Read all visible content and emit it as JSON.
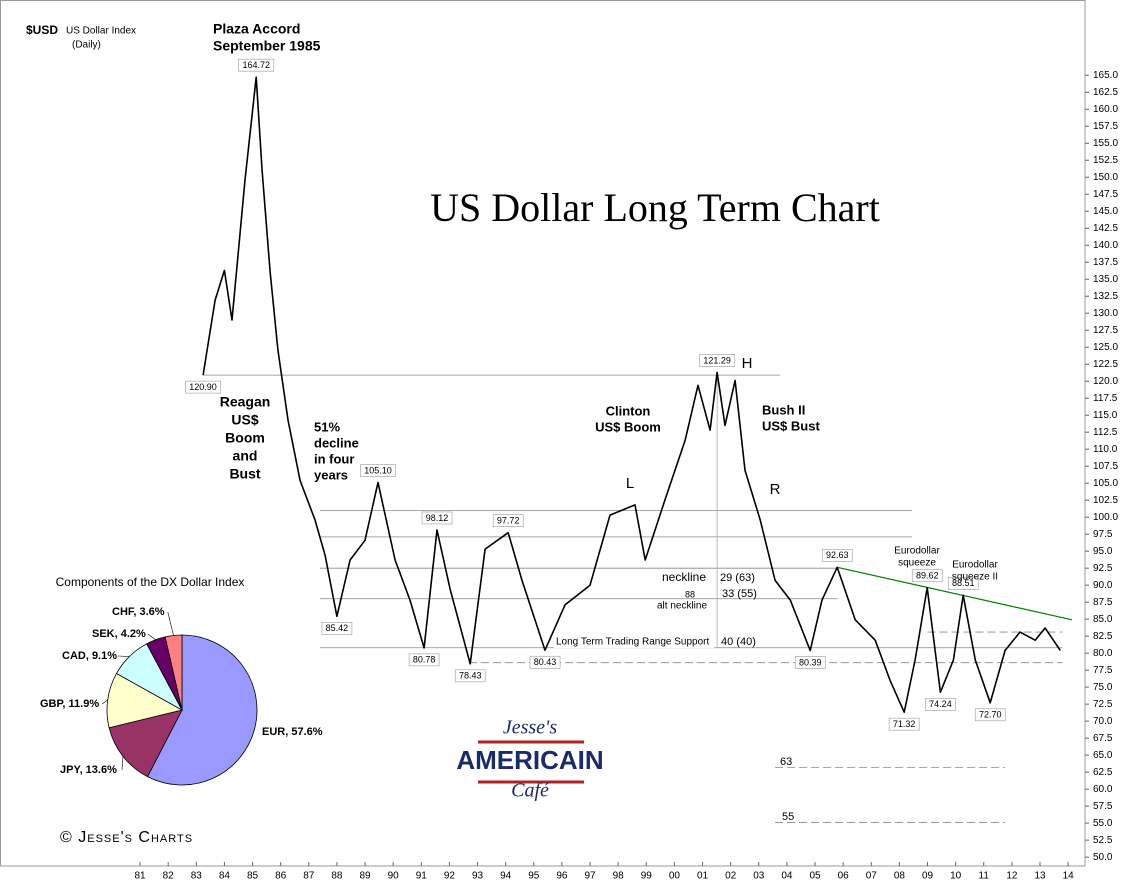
{
  "chart_data": [
    {
      "type": "line",
      "title": "US Dollar Long Term Chart",
      "symbol": "$USD",
      "name": "US Dollar Index",
      "frequency": "(Daily)",
      "x": [
        1983.24,
        1983.67,
        1984.0,
        1984.27,
        1984.73,
        1985.13,
        1985.34,
        1985.62,
        1985.9,
        1986.26,
        1986.69,
        1987.22,
        1987.58,
        1988.0,
        1988.47,
        1989.0,
        1989.46,
        1990.07,
        1990.6,
        1991.1,
        1991.56,
        1992.03,
        1992.74,
        1993.27,
        1994.09,
        1994.58,
        1995.4,
        1996.11,
        1997.0,
        1997.71,
        1998.6,
        1998.96,
        1999.67,
        2000.38,
        2000.84,
        2001.27,
        2001.52,
        2001.8,
        2002.16,
        2002.51,
        2003.05,
        2003.58,
        2004.12,
        2004.83,
        2005.25,
        2005.79,
        2006.43,
        2007.14,
        2007.67,
        2008.17,
        2008.56,
        2008.99,
        2009.46,
        2009.92,
        2010.27,
        2010.7,
        2011.23,
        2011.76,
        2012.29,
        2012.83,
        2013.18,
        2013.72
      ],
      "values": [
        120.9,
        131.9,
        136.3,
        129,
        149.6,
        164.72,
        151,
        136.3,
        124.6,
        114.3,
        105.4,
        99.6,
        94.4,
        85.42,
        93.7,
        96.6,
        105.1,
        93.7,
        87.8,
        80.78,
        98.12,
        89.3,
        78.43,
        95.3,
        97.72,
        90.7,
        80.43,
        87.1,
        90.0,
        100.3,
        101.8,
        93.7,
        102.6,
        111.3,
        119.4,
        112.8,
        121.29,
        113.5,
        120.1,
        106.9,
        99.6,
        90.7,
        87.8,
        80.39,
        87.8,
        92.63,
        84.9,
        81.9,
        76.0,
        71.32,
        79.0,
        89.62,
        74.24,
        79.0,
        88.51,
        79.0,
        72.7,
        80.4,
        83.1,
        81.9,
        83.7,
        80.4
      ],
      "color": "#000000",
      "point_labels": [
        {
          "index": 0,
          "label": "120.90"
        },
        {
          "index": 5,
          "label": "164.72"
        },
        {
          "index": 13,
          "label": "85.42"
        },
        {
          "index": 16,
          "label": "105.10"
        },
        {
          "index": 19,
          "label": "80.78"
        },
        {
          "index": 20,
          "label": "98.12"
        },
        {
          "index": 22,
          "label": "78.43"
        },
        {
          "index": 24,
          "label": "97.72"
        },
        {
          "index": 26,
          "label": "80.43"
        },
        {
          "index": 36,
          "label": "121.29"
        },
        {
          "index": 43,
          "label": "80.39"
        },
        {
          "index": 45,
          "label": "92.63"
        },
        {
          "index": 49,
          "label": "71.32"
        },
        {
          "index": 51,
          "label": "89.62"
        },
        {
          "index": 52,
          "label": "74.24"
        },
        {
          "index": 54,
          "label": "88.51"
        },
        {
          "index": 56,
          "label": "72.70"
        }
      ],
      "reference_lines": [
        {
          "value": 120.9,
          "from": 1983.24,
          "to": 2003.75
        },
        {
          "value": 101,
          "from": 1987.4,
          "to": 2008.45
        },
        {
          "value": 97.1,
          "from": 1987.4,
          "to": 2008.45
        },
        {
          "value": 92.5,
          "from": 1987.4,
          "to": 2005.8
        },
        {
          "value": 88,
          "from": 1987.4,
          "to": 2005.8
        },
        {
          "value": 80.8,
          "from": 1987.4,
          "to": 2013.8
        },
        {
          "value": 78.6,
          "from": 1992.7,
          "to": 2013.8,
          "style": "dashed"
        },
        {
          "value": 83.1,
          "from": 2009.0,
          "to": 2013.8,
          "style": "dashed"
        },
        {
          "value": 63.2,
          "from": 2003.58,
          "to": 2011.76,
          "style": "dashed"
        },
        {
          "value": 55.1,
          "from": 2003.58,
          "to": 2011.76,
          "style": "dashed"
        }
      ],
      "trend_line": {
        "from": [
          2005.79,
          92.63
        ],
        "to": [
          2014.14,
          84.9
        ],
        "color": "#008000"
      },
      "annotations": [
        [
          "Plaza Accord",
          "September 1985"
        ],
        [
          "Reagan",
          "US$",
          "Boom",
          "and",
          "Bust"
        ],
        [
          "51%",
          "decline",
          "in four",
          "years"
        ],
        [
          "Clinton",
          "US$ Boom"
        ],
        [
          "Bush II",
          "US$ Bust"
        ],
        [
          "L"
        ],
        [
          "H"
        ],
        [
          "R"
        ],
        [
          "neckline"
        ],
        [
          "29 (63)"
        ],
        [
          "88"
        ],
        [
          "33 (55)"
        ],
        [
          "alt neckline"
        ],
        [
          "Long Term Trading Range Support"
        ],
        [
          "40 (40)"
        ],
        [
          "Eurodollar",
          "squeeze"
        ],
        [
          "Eurodollar",
          "squeeze II"
        ],
        [
          "63"
        ],
        [
          "55"
        ]
      ],
      "xlim": [
        1976.02,
        2014.6
      ],
      "xticks": [
        {
          "value": 1981,
          "label": "81"
        },
        {
          "value": 1982,
          "label": "82"
        },
        {
          "value": 1983,
          "label": "83"
        },
        {
          "value": 1984,
          "label": "84"
        },
        {
          "value": 1985,
          "label": "85"
        },
        {
          "value": 1986,
          "label": "86"
        },
        {
          "value": 1987,
          "label": "87"
        },
        {
          "value": 1988,
          "label": "88"
        },
        {
          "value": 1989,
          "label": "89"
        },
        {
          "value": 1990,
          "label": "90"
        },
        {
          "value": 1991,
          "label": "91"
        },
        {
          "value": 1992,
          "label": "92"
        },
        {
          "value": 1993,
          "label": "93"
        },
        {
          "value": 1994,
          "label": "94"
        },
        {
          "value": 1995,
          "label": "95"
        },
        {
          "value": 1996,
          "label": "96"
        },
        {
          "value": 1997,
          "label": "97"
        },
        {
          "value": 1998,
          "label": "98"
        },
        {
          "value": 1999,
          "label": "99"
        },
        {
          "value": 2000,
          "label": "00"
        },
        {
          "value": 2001,
          "label": "01"
        },
        {
          "value": 2002,
          "label": "02"
        },
        {
          "value": 2003,
          "label": "03"
        },
        {
          "value": 2004,
          "label": "04"
        },
        {
          "value": 2005,
          "label": "05"
        },
        {
          "value": 2006,
          "label": "06"
        },
        {
          "value": 2007,
          "label": "07"
        },
        {
          "value": 2008,
          "label": "08"
        },
        {
          "value": 2009,
          "label": "09"
        },
        {
          "value": 2010,
          "label": "10"
        },
        {
          "value": 2011,
          "label": "11"
        },
        {
          "value": 2012,
          "label": "12"
        },
        {
          "value": 2013,
          "label": "13"
        },
        {
          "value": 2014,
          "label": "14"
        }
      ],
      "ylim": [
        48.4,
        174.6
      ],
      "yticks": [
        {
          "value": 50,
          "label": "50.0"
        },
        {
          "value": 52.5,
          "label": "52.5"
        },
        {
          "value": 55,
          "label": "55.0"
        },
        {
          "value": 57.5,
          "label": "57.5"
        },
        {
          "value": 60,
          "label": "60.0"
        },
        {
          "value": 62.5,
          "label": "62.5"
        },
        {
          "value": 65,
          "label": "65.0"
        },
        {
          "value": 67.5,
          "label": "67.5"
        },
        {
          "value": 70,
          "label": "70.0"
        },
        {
          "value": 72.5,
          "label": "72.5"
        },
        {
          "value": 75,
          "label": "75.0"
        },
        {
          "value": 77.5,
          "label": "77.5"
        },
        {
          "value": 80,
          "label": "80.0"
        },
        {
          "value": 82.5,
          "label": "82.5"
        },
        {
          "value": 85,
          "label": "85.0"
        },
        {
          "value": 87.5,
          "label": "87.5"
        },
        {
          "value": 90,
          "label": "90.0"
        },
        {
          "value": 92.5,
          "label": "92.5"
        },
        {
          "value": 95,
          "label": "95.0"
        },
        {
          "value": 97.5,
          "label": "97.5"
        },
        {
          "value": 100,
          "label": "100.0"
        },
        {
          "value": 102.5,
          "label": "102.5"
        },
        {
          "value": 105,
          "label": "105.0"
        },
        {
          "value": 107.5,
          "label": "107.5"
        },
        {
          "value": 110,
          "label": "110.0"
        },
        {
          "value": 112.5,
          "label": "112.5"
        },
        {
          "value": 115,
          "label": "115.0"
        },
        {
          "value": 117.5,
          "label": "117.5"
        },
        {
          "value": 120,
          "label": "120.0"
        },
        {
          "value": 122.5,
          "label": "122.5"
        },
        {
          "value": 125,
          "label": "125.0"
        },
        {
          "value": 127.5,
          "label": "127.5"
        },
        {
          "value": 130,
          "label": "130.0"
        },
        {
          "value": 132.5,
          "label": "132.5"
        },
        {
          "value": 135,
          "label": "135.0"
        },
        {
          "value": 137.5,
          "label": "137.5"
        },
        {
          "value": 140,
          "label": "140.0"
        },
        {
          "value": 142.5,
          "label": "142.5"
        },
        {
          "value": 145,
          "label": "145.0"
        },
        {
          "value": 147.5,
          "label": "147.5"
        },
        {
          "value": 150,
          "label": "150.0"
        },
        {
          "value": 152.5,
          "label": "152.5"
        },
        {
          "value": 155,
          "label": "155.0"
        },
        {
          "value": 157.5,
          "label": "157.5"
        },
        {
          "value": 160,
          "label": "160.0"
        },
        {
          "value": 162.5,
          "label": "162.5"
        },
        {
          "value": 165,
          "label": "165.0"
        }
      ],
      "grid": false
    },
    {
      "type": "pie",
      "title": "Components of the DX Dollar Index",
      "values": [
        57.6,
        13.6,
        11.9,
        9.1,
        4.2,
        3.6
      ],
      "value_labels": [
        "EUR, 57.6%",
        "JPY, 13.6%",
        "GBP, 11.9%",
        "CAD, 9.1%",
        "SEK, 4.2%",
        "CHF, 3.6%"
      ],
      "colors": [
        "#9999ff",
        "#993366",
        "#ffffcc",
        "#ccffff",
        "#660066",
        "#ff8080"
      ]
    }
  ],
  "footer": {
    "copyright": "© Jesse's Charts",
    "logo": [
      "Jesse's",
      "AMERICAIN",
      "Café"
    ]
  }
}
